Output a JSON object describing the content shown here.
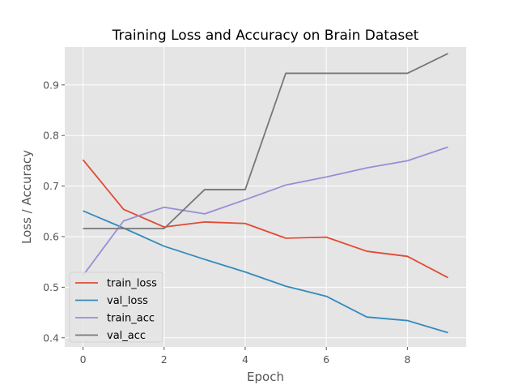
{
  "chart_data": {
    "type": "line",
    "title": "Training Loss and Accuracy on Brain Dataset",
    "xlabel": "Epoch",
    "ylabel": "Loss / Accuracy",
    "x": [
      0,
      1,
      2,
      3,
      4,
      5,
      6,
      7,
      8,
      9
    ],
    "xlim": [
      -0.45,
      9.45
    ],
    "ylim": [
      0.382,
      0.975
    ],
    "xticks": [
      0,
      2,
      4,
      6,
      8
    ],
    "xtick_labels": [
      "0",
      "2",
      "4",
      "6",
      "8"
    ],
    "yticks": [
      0.4,
      0.5,
      0.6,
      0.7,
      0.8,
      0.9
    ],
    "ytick_labels": [
      "0.4",
      "0.5",
      "0.6",
      "0.7",
      "0.8",
      "0.9"
    ],
    "grid": true,
    "style": "ggplot",
    "legend_position": "lower-left",
    "series": [
      {
        "name": "train_loss",
        "color": "#E24A33",
        "values": [
          0.752,
          0.654,
          0.619,
          0.629,
          0.626,
          0.597,
          0.599,
          0.571,
          0.561,
          0.519
        ]
      },
      {
        "name": "val_loss",
        "color": "#348ABD",
        "values": [
          0.651,
          0.617,
          0.581,
          0.555,
          0.53,
          0.502,
          0.482,
          0.441,
          0.434,
          0.41
        ]
      },
      {
        "name": "train_acc",
        "color": "#988ED5",
        "values": [
          0.523,
          0.631,
          0.658,
          0.645,
          0.673,
          0.702,
          0.718,
          0.736,
          0.75,
          0.777
        ]
      },
      {
        "name": "val_acc",
        "color": "#777777",
        "values": [
          0.616,
          0.616,
          0.616,
          0.693,
          0.693,
          0.923,
          0.923,
          0.923,
          0.923,
          0.962
        ]
      }
    ]
  }
}
